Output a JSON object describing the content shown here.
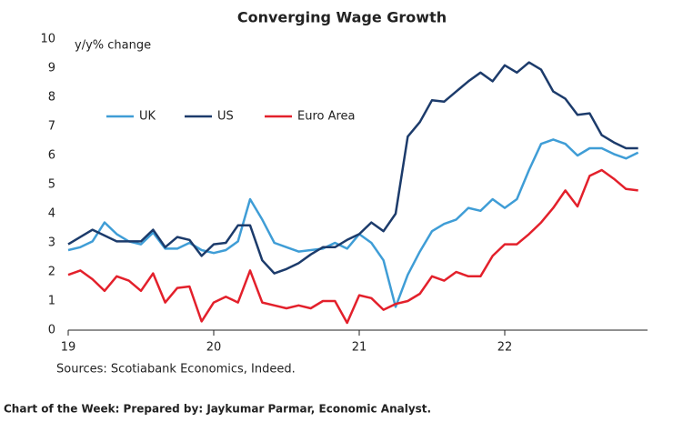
{
  "chart_data": {
    "type": "line",
    "title": "Converging Wage Growth",
    "ylabel": "y/y% change",
    "source": "Sources: Scotiabank Economics, Indeed.",
    "categories": [
      "19",
      null,
      null,
      null,
      null,
      null,
      null,
      null,
      null,
      null,
      null,
      null,
      "20",
      null,
      null,
      null,
      null,
      null,
      null,
      null,
      null,
      null,
      null,
      null,
      "21",
      null,
      null,
      null,
      null,
      null,
      null,
      null,
      null,
      null,
      null,
      null,
      "22",
      null,
      null,
      null,
      null,
      null,
      null,
      null,
      null,
      null,
      null,
      null
    ],
    "series": [
      {
        "name": "UK",
        "color": "#3f9dd6",
        "values": [
          2.75,
          2.85,
          3.05,
          3.7,
          3.3,
          3.05,
          2.95,
          3.35,
          2.8,
          2.8,
          3.0,
          2.75,
          2.65,
          2.75,
          3.05,
          4.5,
          3.8,
          3.0,
          2.85,
          2.7,
          2.75,
          2.8,
          3.0,
          2.8,
          3.3,
          3.0,
          2.4,
          0.8,
          1.9,
          2.7,
          3.4,
          3.65,
          3.8,
          4.2,
          4.1,
          4.5,
          4.2,
          4.5,
          5.5,
          6.4,
          6.55,
          6.4,
          6.0,
          6.25,
          6.25,
          6.05,
          5.9,
          6.1
        ]
      },
      {
        "name": "US",
        "color": "#1c3b6b",
        "values": [
          2.95,
          3.2,
          3.45,
          3.25,
          3.05,
          3.05,
          3.05,
          3.45,
          2.85,
          3.2,
          3.1,
          2.55,
          2.95,
          3.0,
          3.6,
          3.6,
          2.4,
          1.95,
          2.1,
          2.3,
          2.6,
          2.85,
          2.85,
          3.1,
          3.3,
          3.7,
          3.4,
          4.0,
          6.65,
          7.15,
          7.9,
          7.85,
          8.2,
          8.55,
          8.85,
          8.55,
          9.1,
          8.85,
          9.2,
          8.95,
          8.2,
          7.95,
          7.4,
          7.45,
          6.7,
          6.45,
          6.25,
          6.25
        ]
      },
      {
        "name": "Euro Area",
        "color": "#e3202b",
        "values": [
          1.9,
          2.05,
          1.75,
          1.35,
          1.85,
          1.7,
          1.35,
          1.95,
          0.95,
          1.45,
          1.5,
          0.3,
          0.95,
          1.15,
          0.95,
          2.05,
          0.95,
          0.85,
          0.75,
          0.85,
          0.75,
          1.0,
          1.0,
          0.25,
          1.2,
          1.1,
          0.7,
          0.9,
          1.0,
          1.25,
          1.85,
          1.7,
          2.0,
          1.85,
          1.85,
          2.55,
          2.95,
          2.95,
          3.3,
          3.7,
          4.2,
          4.8,
          4.25,
          5.3,
          5.5,
          5.2,
          4.85,
          4.8
        ]
      }
    ],
    "ylim": [
      0,
      10
    ],
    "yticks": [
      0,
      1,
      2,
      3,
      4,
      5,
      6,
      7,
      8,
      9,
      10
    ],
    "grid": false
  },
  "footer": "Chart of the Week: Prepared by: Jaykumar Parmar, Economic Analyst."
}
